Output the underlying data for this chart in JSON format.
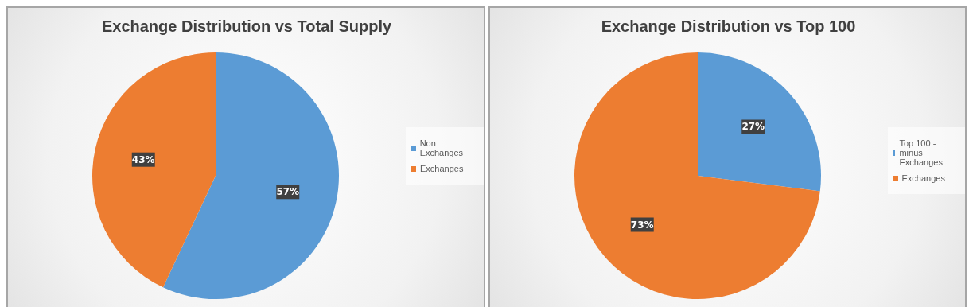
{
  "chart_data": [
    {
      "type": "pie",
      "title": "Exchange Distribution vs Total Supply",
      "categories": [
        "Non Exchanges",
        "Exchanges"
      ],
      "values": [
        57,
        43
      ],
      "colors": [
        "#5b9bd5",
        "#ed7d31"
      ],
      "value_labels": [
        "57%",
        "43%"
      ],
      "legend": "right"
    },
    {
      "type": "pie",
      "title": "Exchange Distribution vs Top 100",
      "categories": [
        "Top 100 - minus Exchanges",
        "Exchanges"
      ],
      "values": [
        27,
        73
      ],
      "colors": [
        "#5b9bd5",
        "#ed7d31"
      ],
      "value_labels": [
        "27%",
        "73%"
      ],
      "legend": "right"
    }
  ]
}
